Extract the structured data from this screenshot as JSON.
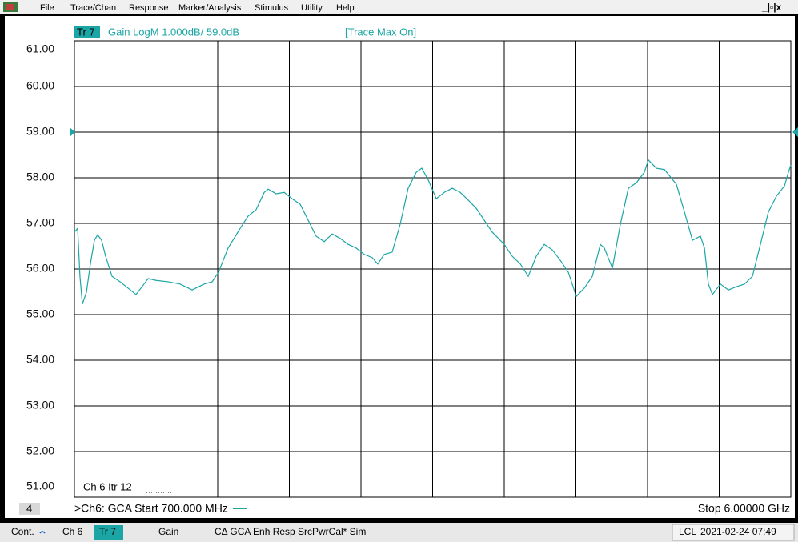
{
  "menu": [
    "File",
    "Trace/Chan",
    "Response",
    "Marker/Analysis",
    "Stimulus",
    "Utility",
    "Help"
  ],
  "chart_data": {
    "type": "line",
    "trace_label": "Tr 7",
    "title": "Gain LogM 1.000dB/ 59.0dB",
    "annotation": "[Trace Max On]",
    "channel_note": "Ch 6  Itr 12",
    "window_number": "4",
    "start_label": ">Ch6: GCA  Start  700.000 MHz",
    "stop_label": "Stop 6.00000 GHz",
    "color": "#1ba5a5",
    "grid": true,
    "xlim": [
      0.7,
      6.0
    ],
    "ylim": [
      51,
      61
    ],
    "yticks": [
      {
        "value": 61,
        "label": "61.00"
      },
      {
        "value": 60,
        "label": "60.00"
      },
      {
        "value": 59,
        "label": "59.00"
      },
      {
        "value": 58,
        "label": "58.00"
      },
      {
        "value": 57,
        "label": "57.00"
      },
      {
        "value": 56,
        "label": "56.00"
      },
      {
        "value": 55,
        "label": "55.00"
      },
      {
        "value": 54,
        "label": "54.00"
      },
      {
        "value": 53,
        "label": "53.00"
      },
      {
        "value": 52,
        "label": "52.00"
      },
      {
        "value": 51,
        "label": "51.00"
      }
    ],
    "x": [
      0.7,
      0.724,
      0.741,
      0.759,
      0.789,
      0.818,
      0.848,
      0.872,
      0.901,
      0.931,
      0.978,
      1.038,
      1.097,
      1.156,
      1.215,
      1.245,
      1.304,
      1.393,
      1.482,
      1.571,
      1.659,
      1.719,
      1.766,
      1.837,
      1.926,
      1.985,
      2.044,
      2.104,
      2.133,
      2.192,
      2.252,
      2.311,
      2.37,
      2.429,
      2.488,
      2.548,
      2.607,
      2.666,
      2.725,
      2.784,
      2.844,
      2.903,
      2.944,
      2.992,
      3.051,
      3.11,
      3.169,
      3.229,
      3.27,
      3.318,
      3.377,
      3.436,
      3.495,
      3.554,
      3.614,
      3.673,
      3.732,
      3.791,
      3.88,
      3.939,
      3.999,
      4.058,
      4.117,
      4.176,
      4.235,
      4.295,
      4.354,
      4.413,
      4.472,
      4.532,
      4.591,
      4.62,
      4.68,
      4.739,
      4.798,
      4.857,
      4.916,
      4.946,
      5.005,
      5.065,
      5.153,
      5.213,
      5.272,
      5.331,
      5.361,
      5.39,
      5.42,
      5.479,
      5.538,
      5.597,
      5.657,
      5.716,
      5.775,
      5.834,
      5.894,
      5.953,
      5.982,
      6.0
    ],
    "values": [
      56.81,
      56.89,
      55.84,
      55.23,
      55.49,
      56.11,
      56.63,
      56.75,
      56.63,
      56.28,
      55.84,
      55.72,
      55.58,
      55.44,
      55.67,
      55.79,
      55.75,
      55.72,
      55.67,
      55.54,
      55.67,
      55.72,
      55.93,
      56.46,
      56.89,
      57.16,
      57.3,
      57.68,
      57.75,
      57.65,
      57.68,
      57.54,
      57.42,
      57.07,
      56.72,
      56.6,
      56.77,
      56.67,
      56.54,
      56.46,
      56.32,
      56.25,
      56.11,
      56.32,
      56.37,
      56.98,
      57.77,
      58.12,
      58.21,
      57.95,
      57.54,
      57.68,
      57.77,
      57.68,
      57.51,
      57.33,
      57.07,
      56.81,
      56.54,
      56.28,
      56.11,
      55.84,
      56.28,
      56.54,
      56.42,
      56.19,
      55.93,
      55.4,
      55.58,
      55.84,
      56.54,
      56.46,
      56.02,
      56.98,
      57.77,
      57.89,
      58.12,
      58.39,
      58.21,
      58.18,
      57.86,
      57.25,
      56.63,
      56.72,
      56.46,
      55.67,
      55.44,
      55.67,
      55.54,
      55.61,
      55.67,
      55.84,
      56.54,
      57.25,
      57.6,
      57.82,
      58.12,
      58.28
    ]
  },
  "status": [
    "Cont.",
    "Ch 6",
    "Tr 7",
    "Gain",
    "CΔ GCA Enh Resp",
    "SrcPwrCal* Sim",
    "LCL",
    "2021-02-24 07:49"
  ]
}
